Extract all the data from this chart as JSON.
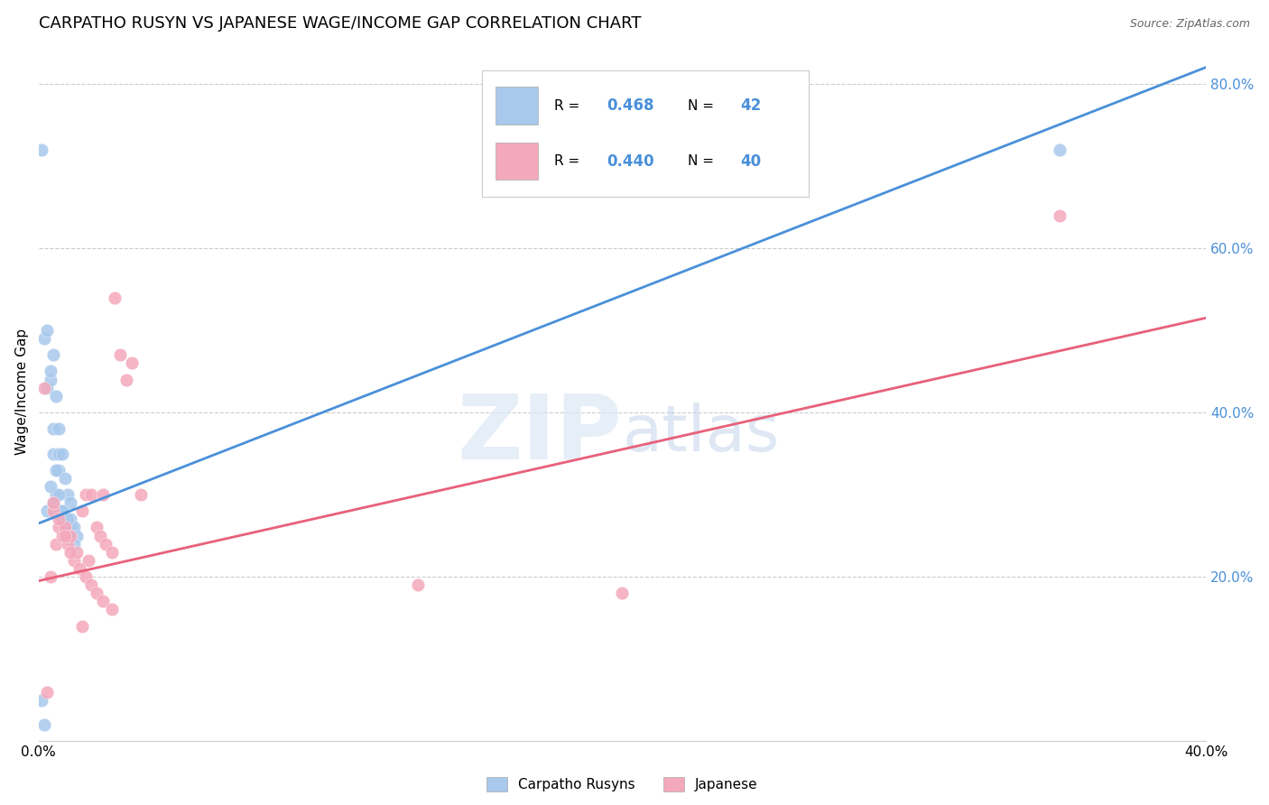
{
  "title": "CARPATHO RUSYN VS JAPANESE WAGE/INCOME GAP CORRELATION CHART",
  "source": "Source: ZipAtlas.com",
  "ylabel": "Wage/Income Gap",
  "watermark_zip": "ZIP",
  "watermark_atlas": "atlas",
  "blue_R": 0.468,
  "blue_N": 42,
  "pink_R": 0.44,
  "pink_N": 40,
  "blue_color": "#A8C8EC",
  "pink_color": "#F4A8BB",
  "blue_line_color": "#4A90D9",
  "pink_line_color": "#E8607A",
  "legend_label_blue": "Carpatho Rusyns",
  "legend_label_pink": "Japanese",
  "xlim": [
    0.0,
    0.4
  ],
  "ylim": [
    0.0,
    0.85
  ],
  "right_yticks": [
    0.2,
    0.4,
    0.6,
    0.8
  ],
  "right_yticklabels": [
    "20.0%",
    "40.0%",
    "60.0%",
    "80.0%"
  ],
  "blue_line_x0": 0.0,
  "blue_line_y0": 0.265,
  "blue_line_x1": 0.4,
  "blue_line_y1": 0.82,
  "pink_line_x0": 0.0,
  "pink_line_y0": 0.195,
  "pink_line_x1": 0.4,
  "pink_line_y1": 0.515,
  "blue_scatter_x": [
    0.001,
    0.002,
    0.003,
    0.004,
    0.005,
    0.005,
    0.006,
    0.006,
    0.007,
    0.007,
    0.008,
    0.008,
    0.009,
    0.009,
    0.01,
    0.01,
    0.011,
    0.011,
    0.012,
    0.013,
    0.002,
    0.003,
    0.004,
    0.005,
    0.006,
    0.007,
    0.008,
    0.009,
    0.01,
    0.011,
    0.003,
    0.004,
    0.005,
    0.006,
    0.007,
    0.008,
    0.009,
    0.01,
    0.011,
    0.012,
    0.35,
    0.001
  ],
  "blue_scatter_y": [
    0.72,
    0.02,
    0.43,
    0.44,
    0.35,
    0.38,
    0.28,
    0.3,
    0.33,
    0.35,
    0.27,
    0.28,
    0.25,
    0.26,
    0.25,
    0.27,
    0.27,
    0.26,
    0.26,
    0.25,
    0.49,
    0.5,
    0.45,
    0.47,
    0.42,
    0.38,
    0.35,
    0.32,
    0.3,
    0.29,
    0.28,
    0.31,
    0.29,
    0.33,
    0.3,
    0.28,
    0.26,
    0.27,
    0.25,
    0.24,
    0.72,
    0.05
  ],
  "pink_scatter_x": [
    0.002,
    0.004,
    0.005,
    0.006,
    0.007,
    0.008,
    0.009,
    0.01,
    0.011,
    0.012,
    0.013,
    0.015,
    0.016,
    0.017,
    0.018,
    0.02,
    0.021,
    0.022,
    0.023,
    0.025,
    0.026,
    0.028,
    0.03,
    0.032,
    0.035,
    0.003,
    0.005,
    0.007,
    0.009,
    0.011,
    0.014,
    0.016,
    0.018,
    0.02,
    0.022,
    0.025,
    0.13,
    0.2,
    0.35,
    0.015
  ],
  "pink_scatter_y": [
    0.43,
    0.2,
    0.28,
    0.24,
    0.26,
    0.25,
    0.26,
    0.24,
    0.25,
    0.22,
    0.23,
    0.28,
    0.3,
    0.22,
    0.3,
    0.26,
    0.25,
    0.3,
    0.24,
    0.23,
    0.54,
    0.47,
    0.44,
    0.46,
    0.3,
    0.06,
    0.29,
    0.27,
    0.25,
    0.23,
    0.21,
    0.2,
    0.19,
    0.18,
    0.17,
    0.16,
    0.19,
    0.18,
    0.64,
    0.14
  ]
}
